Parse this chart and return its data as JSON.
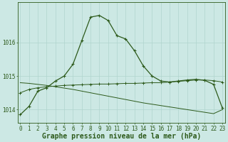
{
  "title": "Graphe pression niveau de la mer (hPa)",
  "bg_color": "#cce8e4",
  "plot_bg_color": "#cce8e4",
  "grid_color": "#b0d4ce",
  "line_color": "#2d5a1b",
  "hours": [
    0,
    1,
    2,
    3,
    4,
    5,
    6,
    7,
    8,
    9,
    10,
    11,
    12,
    13,
    14,
    15,
    16,
    17,
    18,
    19,
    20,
    21,
    22,
    23
  ],
  "series1": [
    1013.85,
    1014.1,
    1014.55,
    1014.65,
    1014.85,
    1015.0,
    1015.35,
    1016.05,
    1016.75,
    1016.8,
    1016.65,
    1016.2,
    1016.1,
    1015.75,
    1015.3,
    1015.0,
    1014.85,
    1014.82,
    1014.85,
    1014.88,
    1014.9,
    1014.87,
    1014.75,
    1014.05
  ],
  "series2": [
    1014.5,
    1014.6,
    1014.65,
    1014.68,
    1014.7,
    1014.72,
    1014.73,
    1014.74,
    1014.75,
    1014.76,
    1014.76,
    1014.77,
    1014.78,
    1014.78,
    1014.79,
    1014.8,
    1014.8,
    1014.82,
    1014.84,
    1014.86,
    1014.88,
    1014.88,
    1014.86,
    1014.82
  ],
  "series3": [
    1014.8,
    1014.78,
    1014.75,
    1014.72,
    1014.68,
    1014.64,
    1014.6,
    1014.55,
    1014.5,
    1014.45,
    1014.4,
    1014.35,
    1014.3,
    1014.25,
    1014.2,
    1014.16,
    1014.12,
    1014.08,
    1014.04,
    1014.0,
    1013.96,
    1013.92,
    1013.88,
    1014.0
  ],
  "yticks": [
    1014,
    1015,
    1016
  ],
  "ylim": [
    1013.6,
    1017.2
  ],
  "xlim": [
    -0.3,
    23.3
  ],
  "xtick_labels": [
    "0",
    "1",
    "2",
    "3",
    "4",
    "5",
    "6",
    "7",
    "8",
    "9",
    "10",
    "11",
    "12",
    "13",
    "14",
    "15",
    "16",
    "17",
    "18",
    "19",
    "20",
    "21",
    "22",
    "23"
  ],
  "tick_fontsize": 5.5,
  "title_fontsize": 7,
  "figsize": [
    3.2,
    2.0
  ],
  "dpi": 100
}
